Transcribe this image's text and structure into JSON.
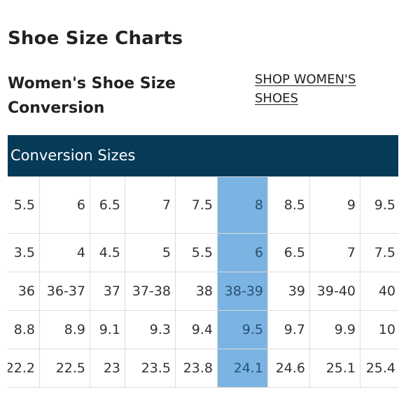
{
  "page": {
    "title": "Shoe Size Charts",
    "section_title": "Women's Shoe Size Conversion",
    "shop_link": "SHOP WOMEN'S SHOES"
  },
  "table": {
    "header": "Conversion Sizes",
    "highlight_column": 5,
    "rows": [
      [
        "5.5",
        "6",
        "6.5",
        "7",
        "7.5",
        "8",
        "8.5",
        "9",
        "9.5"
      ],
      [
        "3.5",
        "4",
        "4.5",
        "5",
        "5.5",
        "6",
        "6.5",
        "7",
        "7.5"
      ],
      [
        "36",
        "36-37",
        "37",
        "37-38",
        "38",
        "38-39",
        "39",
        "39-40",
        "40"
      ],
      [
        "8.8",
        "8.9",
        "9.1",
        "9.3",
        "9.4",
        "9.5",
        "9.7",
        "9.9",
        "10"
      ],
      [
        "22.2",
        "22.5",
        "23",
        "23.5",
        "23.8",
        "24.1",
        "24.6",
        "25.1",
        "25.4"
      ]
    ]
  },
  "colors": {
    "header_bg": "#063a57",
    "highlight_bg": "#7bb4e2"
  }
}
